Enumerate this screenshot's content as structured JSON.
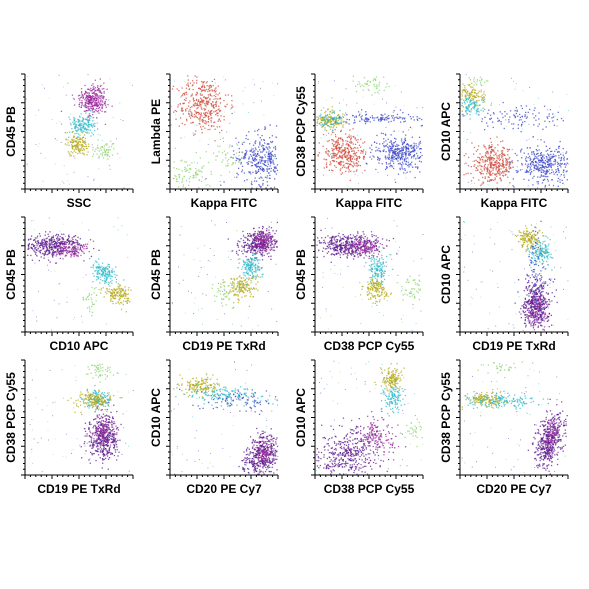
{
  "colors": {
    "purple": "#5a1a8c",
    "magenta": "#9c2b9c",
    "teal": "#2fb8c8",
    "olive": "#b4aa18",
    "green": "#8cd46e",
    "red": "#cc4a3a",
    "blue": "#3a44c8"
  },
  "chart_data": [
    {
      "type": "scatter",
      "xlabel": "SSC",
      "ylabel": "CD45 PB",
      "populations": [
        {
          "color": "magenta",
          "cx": 0.62,
          "cy": 0.78,
          "sx": 0.07,
          "sy": 0.06,
          "n": 320,
          "rot": 35
        },
        {
          "color": "teal",
          "cx": 0.52,
          "cy": 0.56,
          "sx": 0.06,
          "sy": 0.05,
          "n": 160,
          "rot": 20
        },
        {
          "color": "olive",
          "cx": 0.48,
          "cy": 0.39,
          "sx": 0.05,
          "sy": 0.04,
          "n": 140,
          "rot": 10
        },
        {
          "color": "green",
          "cx": 0.72,
          "cy": 0.33,
          "sx": 0.06,
          "sy": 0.05,
          "n": 60,
          "rot": 0
        }
      ]
    },
    {
      "type": "scatter",
      "xlabel": "Kappa FITC",
      "ylabel": "Lambda PE",
      "populations": [
        {
          "color": "red",
          "cx": 0.3,
          "cy": 0.74,
          "sx": 0.12,
          "sy": 0.12,
          "n": 380,
          "rot": 0
        },
        {
          "color": "blue",
          "cx": 0.85,
          "cy": 0.27,
          "sx": 0.12,
          "sy": 0.11,
          "n": 360,
          "rot": 0
        },
        {
          "color": "green",
          "cx": 0.18,
          "cy": 0.13,
          "sx": 0.1,
          "sy": 0.08,
          "n": 90,
          "rot": 0
        },
        {
          "color": "green",
          "cx": 0.55,
          "cy": 0.28,
          "sx": 0.07,
          "sy": 0.07,
          "n": 40,
          "rot": 0
        }
      ]
    },
    {
      "type": "scatter",
      "xlabel": "Kappa FITC",
      "ylabel": "CD38 PCP Cy55",
      "populations": [
        {
          "color": "red",
          "cx": 0.27,
          "cy": 0.32,
          "sx": 0.1,
          "sy": 0.08,
          "n": 340,
          "rot": 0
        },
        {
          "color": "blue",
          "cx": 0.78,
          "cy": 0.32,
          "sx": 0.12,
          "sy": 0.08,
          "n": 360,
          "rot": 0
        },
        {
          "color": "olive",
          "cx": 0.12,
          "cy": 0.6,
          "sx": 0.08,
          "sy": 0.04,
          "n": 150,
          "rot": 0
        },
        {
          "color": "teal",
          "cx": 0.13,
          "cy": 0.6,
          "sx": 0.06,
          "sy": 0.04,
          "n": 80,
          "rot": 0
        },
        {
          "color": "blue",
          "cx": 0.6,
          "cy": 0.62,
          "sx": 0.24,
          "sy": 0.03,
          "n": 120,
          "rot": 0
        },
        {
          "color": "green",
          "cx": 0.5,
          "cy": 0.92,
          "sx": 0.07,
          "sy": 0.05,
          "n": 50,
          "rot": 0
        }
      ]
    },
    {
      "type": "scatter",
      "xlabel": "Kappa FITC",
      "ylabel": "CD10 APC",
      "populations": [
        {
          "color": "red",
          "cx": 0.3,
          "cy": 0.22,
          "sx": 0.1,
          "sy": 0.08,
          "n": 340,
          "rot": 0
        },
        {
          "color": "blue",
          "cx": 0.78,
          "cy": 0.22,
          "sx": 0.12,
          "sy": 0.08,
          "n": 360,
          "rot": 0
        },
        {
          "color": "olive",
          "cx": 0.1,
          "cy": 0.82,
          "sx": 0.06,
          "sy": 0.05,
          "n": 120,
          "rot": 0
        },
        {
          "color": "teal",
          "cx": 0.1,
          "cy": 0.72,
          "sx": 0.06,
          "sy": 0.04,
          "n": 90,
          "rot": 0
        },
        {
          "color": "blue",
          "cx": 0.55,
          "cy": 0.62,
          "sx": 0.25,
          "sy": 0.05,
          "n": 110,
          "rot": 0
        },
        {
          "color": "green",
          "cx": 0.15,
          "cy": 0.95,
          "sx": 0.05,
          "sy": 0.03,
          "n": 20,
          "rot": 0
        }
      ]
    },
    {
      "type": "scatter",
      "xlabel": "CD10 APC",
      "ylabel": "CD45 PB",
      "populations": [
        {
          "color": "purple",
          "cx": 0.25,
          "cy": 0.76,
          "sx": 0.14,
          "sy": 0.05,
          "n": 420,
          "rot": 0
        },
        {
          "color": "magenta",
          "cx": 0.42,
          "cy": 0.72,
          "sx": 0.08,
          "sy": 0.04,
          "n": 120,
          "rot": 0
        },
        {
          "color": "teal",
          "cx": 0.72,
          "cy": 0.52,
          "sx": 0.06,
          "sy": 0.04,
          "n": 140,
          "rot": -20
        },
        {
          "color": "olive",
          "cx": 0.86,
          "cy": 0.33,
          "sx": 0.07,
          "sy": 0.04,
          "n": 150,
          "rot": -15
        },
        {
          "color": "green",
          "cx": 0.6,
          "cy": 0.3,
          "sx": 0.05,
          "sy": 0.05,
          "n": 30,
          "rot": 0
        }
      ]
    },
    {
      "type": "scatter",
      "xlabel": "CD19 PE TxRd",
      "ylabel": "CD45 PB",
      "populations": [
        {
          "color": "purple",
          "cx": 0.82,
          "cy": 0.78,
          "sx": 0.08,
          "sy": 0.06,
          "n": 360,
          "rot": 20
        },
        {
          "color": "magenta",
          "cx": 0.85,
          "cy": 0.8,
          "sx": 0.05,
          "sy": 0.04,
          "n": 120,
          "rot": 0
        },
        {
          "color": "teal",
          "cx": 0.74,
          "cy": 0.57,
          "sx": 0.05,
          "sy": 0.05,
          "n": 140,
          "rot": 0
        },
        {
          "color": "olive",
          "cx": 0.66,
          "cy": 0.4,
          "sx": 0.07,
          "sy": 0.05,
          "n": 150,
          "rot": 0
        },
        {
          "color": "green",
          "cx": 0.5,
          "cy": 0.35,
          "sx": 0.07,
          "sy": 0.06,
          "n": 50,
          "rot": 0
        }
      ]
    },
    {
      "type": "scatter",
      "xlabel": "CD38 PCP Cy55",
      "ylabel": "CD45 PB",
      "populations": [
        {
          "color": "purple",
          "cx": 0.3,
          "cy": 0.76,
          "sx": 0.15,
          "sy": 0.05,
          "n": 420,
          "rot": 0
        },
        {
          "color": "magenta",
          "cx": 0.45,
          "cy": 0.75,
          "sx": 0.08,
          "sy": 0.04,
          "n": 120,
          "rot": 0
        },
        {
          "color": "teal",
          "cx": 0.58,
          "cy": 0.55,
          "sx": 0.04,
          "sy": 0.06,
          "n": 130,
          "rot": 0
        },
        {
          "color": "olive",
          "cx": 0.56,
          "cy": 0.37,
          "sx": 0.05,
          "sy": 0.05,
          "n": 140,
          "rot": 0
        },
        {
          "color": "green",
          "cx": 0.88,
          "cy": 0.4,
          "sx": 0.06,
          "sy": 0.06,
          "n": 50,
          "rot": 0
        }
      ]
    },
    {
      "type": "scatter",
      "xlabel": "CD19 PE TxRd",
      "ylabel": "CD10 APC",
      "populations": [
        {
          "color": "purple",
          "cx": 0.7,
          "cy": 0.25,
          "sx": 0.06,
          "sy": 0.11,
          "n": 420,
          "rot": 0
        },
        {
          "color": "magenta",
          "cx": 0.7,
          "cy": 0.2,
          "sx": 0.05,
          "sy": 0.08,
          "n": 100,
          "rot": 0
        },
        {
          "color": "teal",
          "cx": 0.75,
          "cy": 0.7,
          "sx": 0.05,
          "sy": 0.05,
          "n": 140,
          "rot": 0
        },
        {
          "color": "olive",
          "cx": 0.64,
          "cy": 0.82,
          "sx": 0.06,
          "sy": 0.05,
          "n": 140,
          "rot": 0
        },
        {
          "color": "blue",
          "cx": 0.7,
          "cy": 0.5,
          "sx": 0.05,
          "sy": 0.2,
          "n": 90,
          "rot": 0
        }
      ]
    },
    {
      "type": "scatter",
      "xlabel": "CD19 PE TxRd",
      "ylabel": "CD38 PCP Cy55",
      "populations": [
        {
          "color": "purple",
          "cx": 0.72,
          "cy": 0.33,
          "sx": 0.07,
          "sy": 0.1,
          "n": 420,
          "rot": 0
        },
        {
          "color": "magenta",
          "cx": 0.72,
          "cy": 0.38,
          "sx": 0.05,
          "sy": 0.07,
          "n": 100,
          "rot": 0
        },
        {
          "color": "teal",
          "cx": 0.66,
          "cy": 0.66,
          "sx": 0.06,
          "sy": 0.04,
          "n": 130,
          "rot": 0
        },
        {
          "color": "olive",
          "cx": 0.62,
          "cy": 0.66,
          "sx": 0.08,
          "sy": 0.04,
          "n": 150,
          "rot": 0
        },
        {
          "color": "green",
          "cx": 0.68,
          "cy": 0.93,
          "sx": 0.06,
          "sy": 0.04,
          "n": 50,
          "rot": 0
        }
      ]
    },
    {
      "type": "scatter",
      "xlabel": "CD20 PE Cy7",
      "ylabel": "CD10 APC",
      "populations": [
        {
          "color": "purple",
          "cx": 0.85,
          "cy": 0.18,
          "sx": 0.07,
          "sy": 0.1,
          "n": 420,
          "rot": -30
        },
        {
          "color": "magenta",
          "cx": 0.87,
          "cy": 0.2,
          "sx": 0.05,
          "sy": 0.06,
          "n": 100,
          "rot": 0
        },
        {
          "color": "teal",
          "cx": 0.5,
          "cy": 0.7,
          "sx": 0.18,
          "sy": 0.04,
          "n": 170,
          "rot": -5
        },
        {
          "color": "olive",
          "cx": 0.28,
          "cy": 0.78,
          "sx": 0.08,
          "sy": 0.04,
          "n": 140,
          "rot": 0
        },
        {
          "color": "blue",
          "cx": 0.65,
          "cy": 0.65,
          "sx": 0.2,
          "sy": 0.05,
          "n": 80,
          "rot": 0
        }
      ]
    },
    {
      "type": "scatter",
      "xlabel": "CD38 PCP Cy55",
      "ylabel": "CD10 APC",
      "populations": [
        {
          "color": "purple",
          "cx": 0.3,
          "cy": 0.2,
          "sx": 0.18,
          "sy": 0.1,
          "n": 440,
          "rot": 15
        },
        {
          "color": "magenta",
          "cx": 0.55,
          "cy": 0.35,
          "sx": 0.07,
          "sy": 0.09,
          "n": 140,
          "rot": 50
        },
        {
          "color": "teal",
          "cx": 0.72,
          "cy": 0.68,
          "sx": 0.05,
          "sy": 0.06,
          "n": 120,
          "rot": 0
        },
        {
          "color": "olive",
          "cx": 0.7,
          "cy": 0.85,
          "sx": 0.05,
          "sy": 0.05,
          "n": 130,
          "rot": 0
        },
        {
          "color": "green",
          "cx": 0.92,
          "cy": 0.38,
          "sx": 0.04,
          "sy": 0.05,
          "n": 30,
          "rot": 0
        }
      ]
    },
    {
      "type": "scatter",
      "xlabel": "CD20 PE Cy7",
      "ylabel": "CD38 PCP Cy55",
      "populations": [
        {
          "color": "purple",
          "cx": 0.82,
          "cy": 0.3,
          "sx": 0.06,
          "sy": 0.12,
          "n": 420,
          "rot": -20
        },
        {
          "color": "magenta",
          "cx": 0.84,
          "cy": 0.36,
          "sx": 0.05,
          "sy": 0.07,
          "n": 100,
          "rot": 0
        },
        {
          "color": "teal",
          "cx": 0.35,
          "cy": 0.65,
          "sx": 0.18,
          "sy": 0.03,
          "n": 190,
          "rot": 0
        },
        {
          "color": "olive",
          "cx": 0.22,
          "cy": 0.66,
          "sx": 0.08,
          "sy": 0.03,
          "n": 120,
          "rot": 0
        },
        {
          "color": "green",
          "cx": 0.35,
          "cy": 0.94,
          "sx": 0.12,
          "sy": 0.03,
          "n": 30,
          "rot": 0
        }
      ]
    }
  ]
}
